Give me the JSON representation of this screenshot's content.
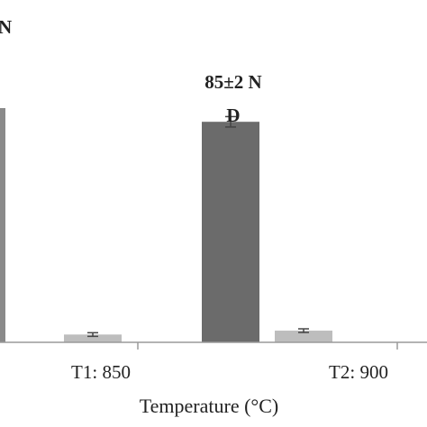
{
  "chart_data": {
    "type": "bar",
    "xlabel": "Temperature (°C)",
    "ylabel": "",
    "categories": [
      "T1: 850",
      "T2: 900"
    ],
    "series": [
      {
        "values": [
          null,
          85
        ],
        "errors": [
          null,
          2
        ],
        "color": "#6b6b6b"
      },
      {
        "values": [
          3,
          4.5
        ],
        "errors": [
          0.7,
          0.7
        ],
        "color": "#bdbdbd"
      }
    ],
    "annotations": [
      {
        "category": "T1: 850",
        "text": "N"
      },
      {
        "category": "T2: 900",
        "text": "85±2 N"
      },
      {
        "category": "T2: 900",
        "text": "D"
      }
    ],
    "ylim": [
      0,
      100
    ],
    "grid": false,
    "colors": {
      "dark_bar": "#6b6b6b",
      "light_bar": "#bdbdbd",
      "axis": "#9a9a9a",
      "text": "#222222"
    }
  }
}
